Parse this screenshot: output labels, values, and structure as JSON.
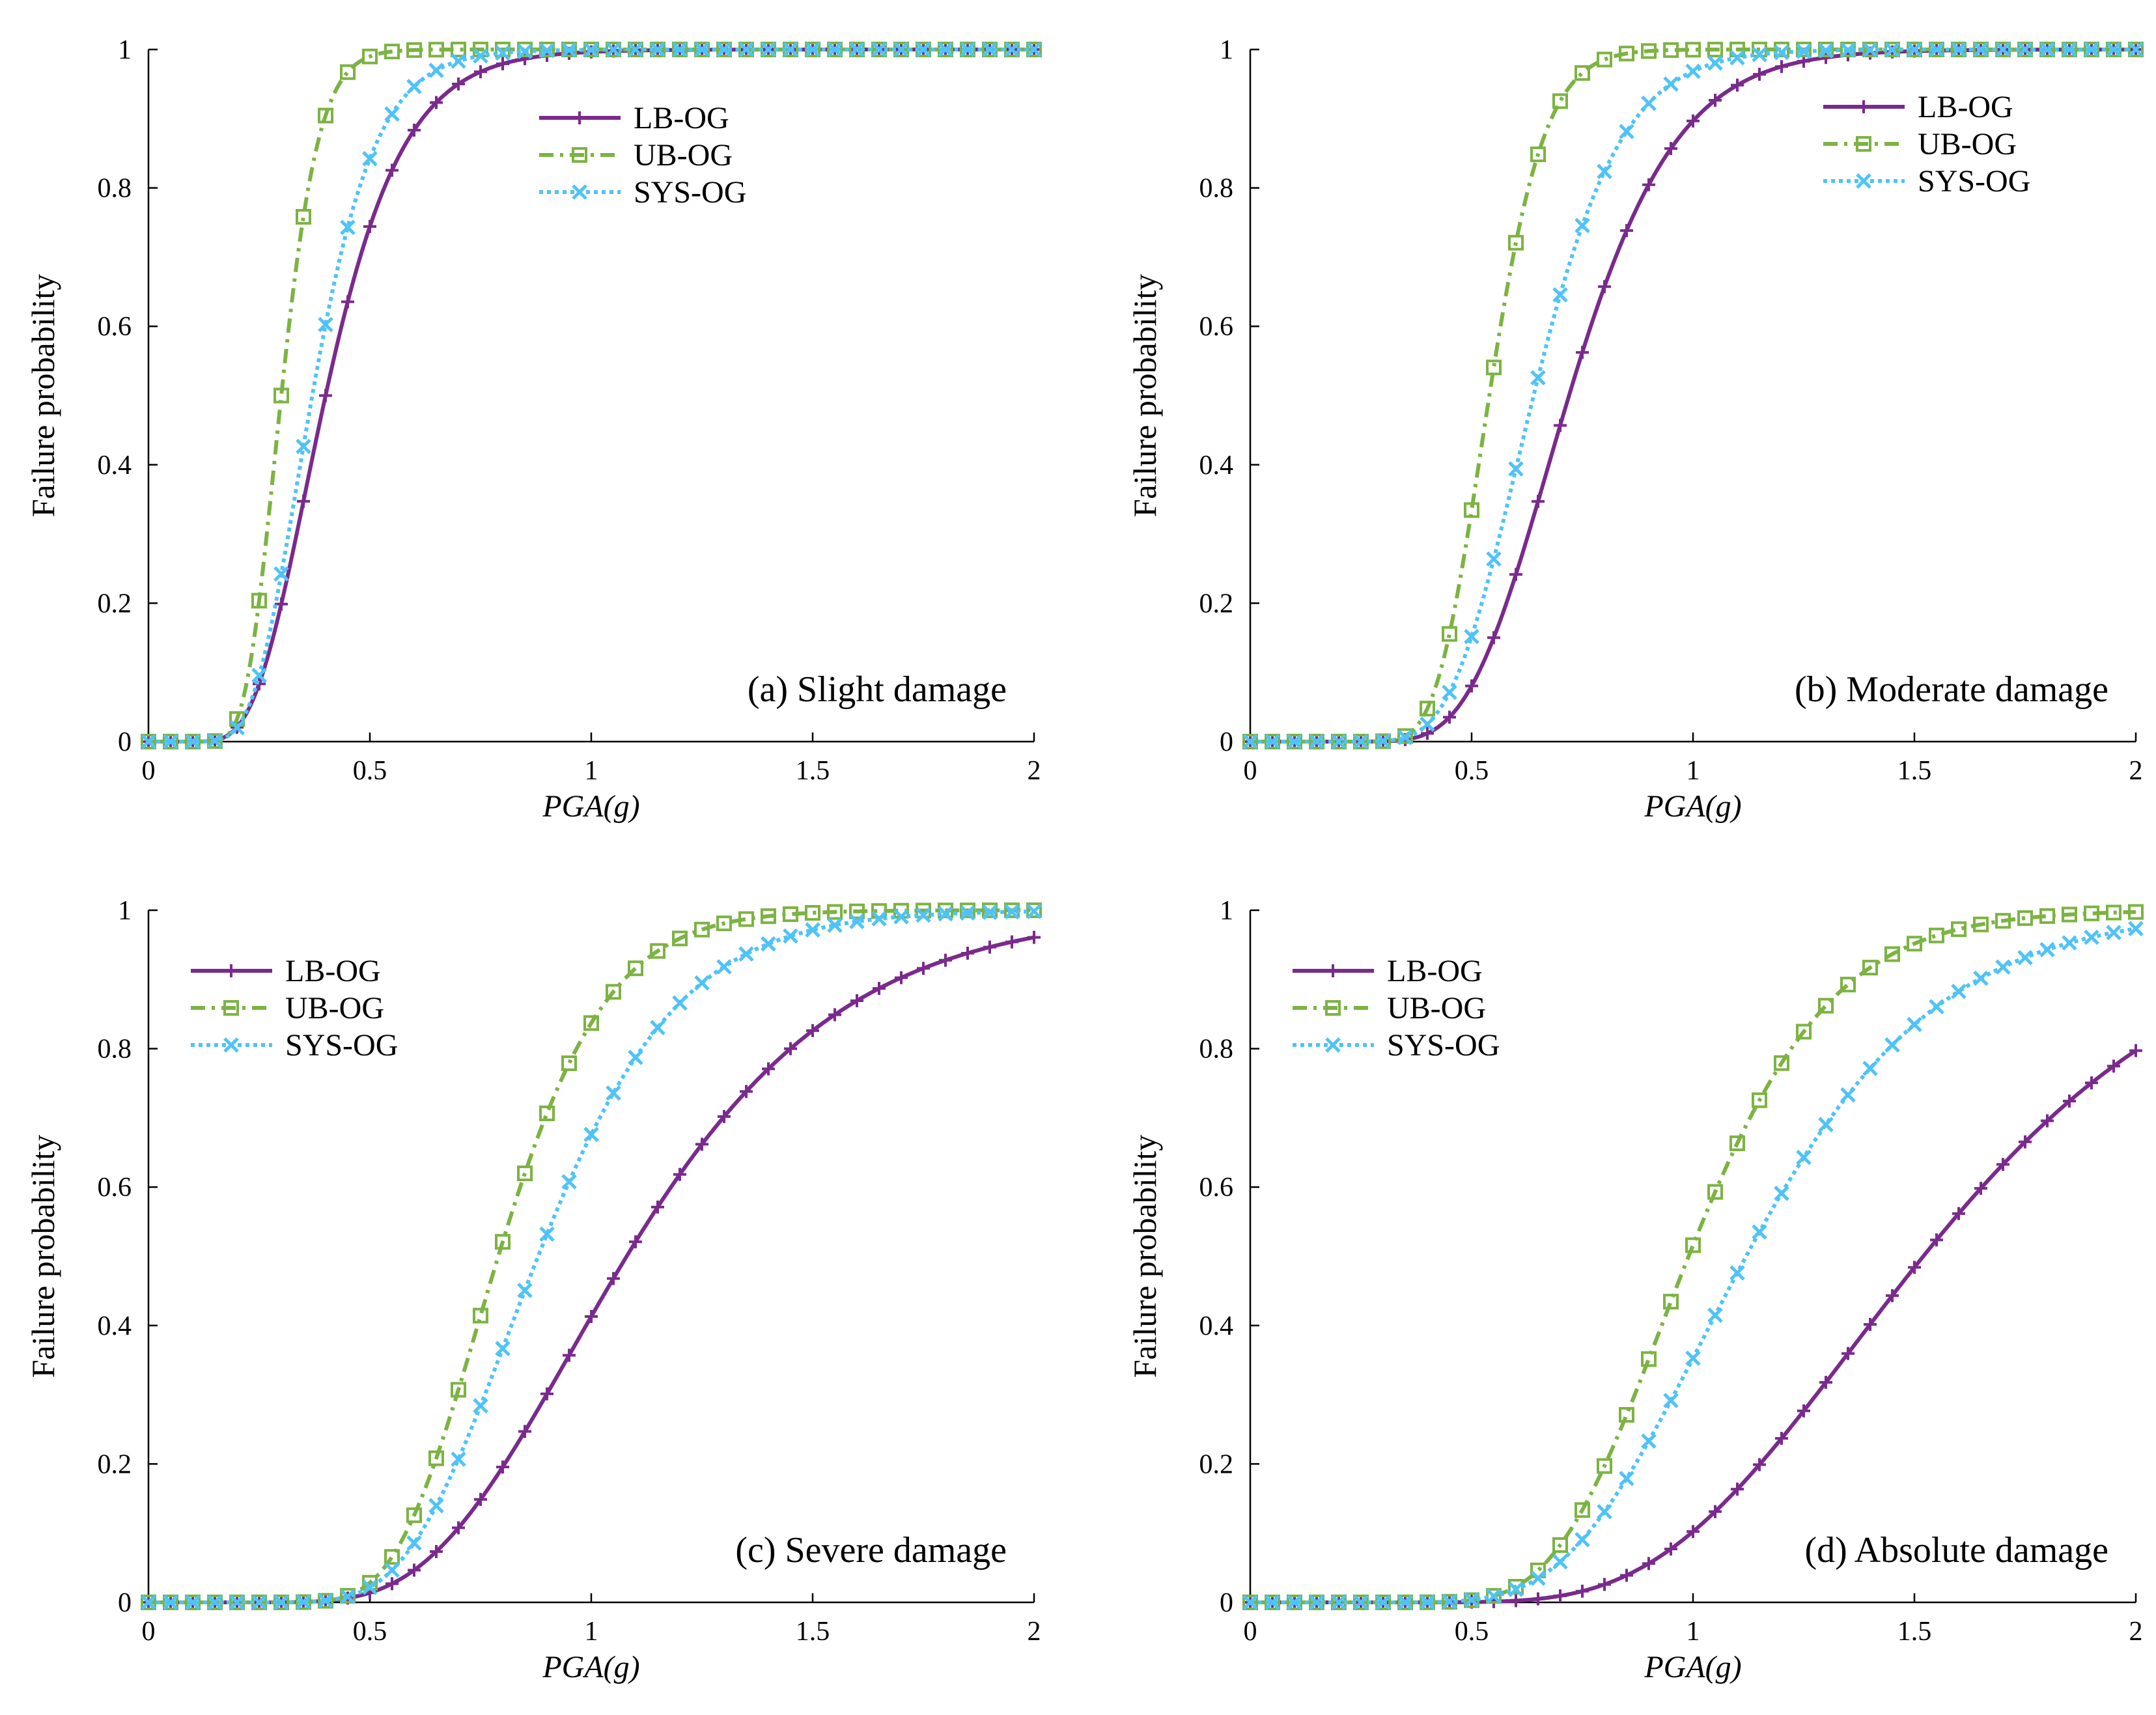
{
  "figure": {
    "panels": [
      {
        "series_colors": {
          "LB-OG": "#7a2a8c",
          "UB-OG": "#7cb342",
          "SYS-OG": "#4fc3f7"
        }
      }
    ]
  },
  "chart_data": [
    {
      "type": "line",
      "annotation": "(a) Slight damage",
      "xlabel": "PGA(g)",
      "ylabel": "Failure probability",
      "xlim": [
        0,
        2
      ],
      "ylim": [
        0,
        1
      ],
      "x_ticks": [
        "0",
        "0.5",
        "1",
        "1.5",
        "2"
      ],
      "y_ticks": [
        "0",
        "0.2",
        "0.4",
        "0.6",
        "0.8",
        "1"
      ],
      "legend_position": "top-center",
      "series": [
        {
          "name": "LB-OG",
          "style": "solid",
          "marker": "plus",
          "color": "#7a2a8c",
          "median": 0.4,
          "beta": 0.34
        },
        {
          "name": "UB-OG",
          "style": "dash-dot",
          "marker": "square",
          "color": "#7cb342",
          "median": 0.3,
          "beta": 0.22
        },
        {
          "name": "SYS-OG",
          "style": "dotted",
          "marker": "x",
          "color": "#4fc3f7",
          "median": 0.37,
          "beta": 0.3
        }
      ]
    },
    {
      "type": "line",
      "annotation": "(b) Moderate damage",
      "xlabel": "PGA(g)",
      "ylabel": "Failure probability",
      "xlim": [
        0,
        2
      ],
      "ylim": [
        0,
        1
      ],
      "x_ticks": [
        "0",
        "0.5",
        "1",
        "1.5",
        "2"
      ],
      "y_ticks": [
        "0",
        "0.2",
        "0.4",
        "0.6",
        "0.8",
        "1"
      ],
      "legend_position": "top-right",
      "series": [
        {
          "name": "LB-OG",
          "style": "solid",
          "marker": "plus",
          "color": "#7a2a8c",
          "median": 0.72,
          "beta": 0.26
        },
        {
          "name": "UB-OG",
          "style": "dash-dot",
          "marker": "square",
          "color": "#7cb342",
          "median": 0.54,
          "beta": 0.18
        },
        {
          "name": "SYS-OG",
          "style": "dotted",
          "marker": "x",
          "color": "#4fc3f7",
          "median": 0.64,
          "beta": 0.24
        }
      ]
    },
    {
      "type": "line",
      "annotation": "(c) Severe damage",
      "xlabel": "PGA(g)",
      "ylabel": "Failure probability",
      "xlim": [
        0,
        2
      ],
      "ylim": [
        0,
        1
      ],
      "x_ticks": [
        "0",
        "0.5",
        "1",
        "1.5",
        "2"
      ],
      "y_ticks": [
        "0",
        "0.2",
        "0.4",
        "0.6",
        "0.8",
        "1"
      ],
      "legend_position": "top-left",
      "series": [
        {
          "name": "LB-OG",
          "style": "solid",
          "marker": "plus",
          "color": "#7a2a8c",
          "median": 1.08,
          "beta": 0.35
        },
        {
          "name": "UB-OG",
          "style": "dash-dot",
          "marker": "square",
          "color": "#7cb342",
          "median": 0.79,
          "beta": 0.24
        },
        {
          "name": "SYS-OG",
          "style": "dotted",
          "marker": "x",
          "color": "#4fc3f7",
          "median": 0.88,
          "beta": 0.28
        }
      ]
    },
    {
      "type": "line",
      "annotation": "(d) Absolute damage",
      "xlabel": "PGA(g)",
      "ylabel": "Failure probability",
      "xlim": [
        0,
        2
      ],
      "ylim": [
        0,
        1
      ],
      "x_ticks": [
        "0",
        "0.5",
        "1",
        "1.5",
        "2"
      ],
      "y_ticks": [
        "0",
        "0.2",
        "0.4",
        "0.6",
        "0.8",
        "1"
      ],
      "legend_position": "top-left",
      "series": [
        {
          "name": "LB-OG",
          "style": "solid",
          "marker": "plus",
          "color": "#7a2a8c",
          "median": 1.52,
          "beta": 0.33
        },
        {
          "name": "UB-OG",
          "style": "dash-dot",
          "marker": "square",
          "color": "#7cb342",
          "median": 0.99,
          "beta": 0.25
        },
        {
          "name": "SYS-OG",
          "style": "dotted",
          "marker": "x",
          "color": "#4fc3f7",
          "median": 1.12,
          "beta": 0.3
        }
      ]
    }
  ]
}
